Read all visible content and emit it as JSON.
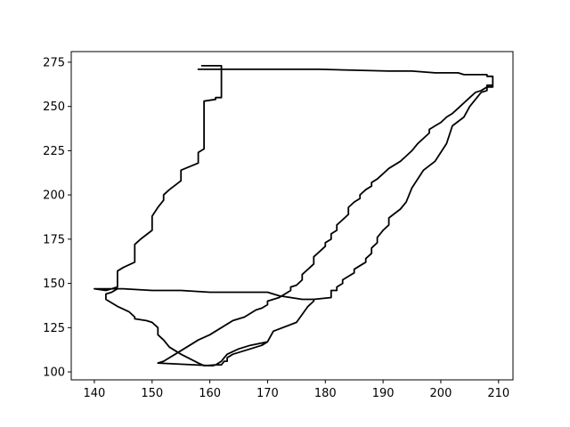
{
  "chart_data": {
    "type": "line",
    "title": "",
    "xlabel": "",
    "ylabel": "",
    "xlim": [
      136,
      212.5
    ],
    "ylim": [
      95.5,
      281
    ],
    "grid": false,
    "legend": "none",
    "x_ticks": [
      140,
      150,
      160,
      170,
      180,
      190,
      200,
      210
    ],
    "y_ticks": [
      100,
      125,
      150,
      175,
      200,
      225,
      250,
      275
    ],
    "series": [
      {
        "color": "#000000",
        "points": [
          [
            158.5,
            273
          ],
          [
            162,
            273
          ],
          [
            162,
            271
          ],
          [
            158,
            271
          ],
          [
            165,
            271
          ],
          [
            179,
            271
          ],
          [
            191,
            270
          ],
          [
            195,
            270
          ],
          [
            199,
            269
          ],
          [
            203,
            269
          ],
          [
            204,
            268
          ],
          [
            208,
            268
          ],
          [
            208,
            267
          ],
          [
            209,
            267
          ],
          [
            209,
            262
          ],
          [
            208,
            262
          ],
          [
            208,
            261
          ],
          [
            207,
            259
          ],
          [
            206,
            258
          ],
          [
            205,
            255
          ],
          [
            204,
            252
          ],
          [
            203,
            249
          ],
          [
            202,
            246
          ],
          [
            201,
            244
          ],
          [
            200,
            241
          ],
          [
            199,
            239
          ],
          [
            198,
            237
          ],
          [
            198,
            235
          ],
          [
            197,
            232
          ],
          [
            196,
            229
          ],
          [
            195,
            225
          ],
          [
            194,
            222
          ],
          [
            193,
            219
          ],
          [
            192,
            217
          ],
          [
            191,
            215
          ],
          [
            190,
            212
          ],
          [
            189,
            209
          ],
          [
            188,
            207
          ],
          [
            188,
            205
          ],
          [
            187,
            203
          ],
          [
            186,
            200
          ],
          [
            186,
            198
          ],
          [
            185,
            196
          ],
          [
            184,
            193
          ],
          [
            184,
            189
          ],
          [
            183,
            186
          ],
          [
            182,
            183
          ],
          [
            182,
            180
          ],
          [
            181,
            178
          ],
          [
            181,
            175
          ],
          [
            180,
            173
          ],
          [
            180,
            171
          ],
          [
            179,
            168
          ],
          [
            178,
            165
          ],
          [
            178,
            161
          ],
          [
            177,
            158
          ],
          [
            176,
            155
          ],
          [
            176,
            152
          ],
          [
            175,
            149
          ],
          [
            174,
            148
          ],
          [
            174,
            146
          ],
          [
            173,
            144
          ],
          [
            172,
            142
          ],
          [
            171,
            141
          ],
          [
            170,
            140
          ],
          [
            170,
            138
          ],
          [
            169,
            136
          ],
          [
            168,
            135
          ],
          [
            167,
            133
          ],
          [
            166,
            131
          ],
          [
            165,
            130
          ],
          [
            164,
            129
          ],
          [
            163,
            127
          ],
          [
            162,
            125
          ],
          [
            161,
            123
          ],
          [
            160,
            121
          ],
          [
            158,
            118
          ],
          [
            157,
            116
          ],
          [
            156,
            114
          ],
          [
            155,
            112
          ],
          [
            154,
            110
          ],
          [
            153,
            108
          ],
          [
            152,
            106
          ],
          [
            151,
            105
          ],
          [
            160.5,
            103.5
          ],
          [
            161,
            104
          ],
          [
            162,
            104
          ],
          [
            162.5,
            106
          ],
          [
            163,
            106
          ],
          [
            163,
            108
          ],
          [
            164,
            110
          ],
          [
            165,
            111
          ],
          [
            167,
            113
          ],
          [
            169,
            115
          ],
          [
            170,
            117
          ],
          [
            171,
            123
          ],
          [
            175,
            128
          ],
          [
            177,
            137
          ],
          [
            178,
            140
          ],
          [
            178,
            141
          ],
          [
            181,
            142
          ],
          [
            181,
            146
          ],
          [
            182,
            146
          ],
          [
            182,
            148
          ],
          [
            183,
            150
          ],
          [
            183,
            152
          ],
          [
            184,
            154
          ],
          [
            185,
            156
          ],
          [
            185,
            158
          ],
          [
            186,
            160
          ],
          [
            187,
            162
          ],
          [
            187,
            164
          ],
          [
            188,
            167
          ],
          [
            188,
            170
          ],
          [
            189,
            173
          ],
          [
            189,
            176
          ],
          [
            190,
            180
          ],
          [
            191,
            183
          ],
          [
            191,
            187
          ],
          [
            193,
            192
          ],
          [
            194,
            196
          ],
          [
            195,
            204
          ],
          [
            197,
            214
          ],
          [
            199,
            219
          ],
          [
            201,
            229
          ],
          [
            202,
            239
          ],
          [
            204,
            244
          ],
          [
            205,
            250
          ],
          [
            206,
            254
          ],
          [
            207,
            258
          ],
          [
            208,
            259
          ],
          [
            208,
            261
          ],
          [
            209,
            261
          ],
          [
            209,
            267
          ],
          [
            208,
            267
          ],
          [
            208,
            268
          ],
          [
            204,
            268
          ],
          [
            203,
            269
          ],
          [
            199,
            269
          ],
          [
            195,
            270
          ],
          [
            191,
            270
          ],
          [
            179,
            271
          ],
          [
            162,
            271
          ],
          [
            162,
            255
          ],
          [
            161,
            255
          ],
          [
            161,
            254
          ],
          [
            159,
            253
          ],
          [
            159,
            250
          ],
          [
            159,
            226
          ],
          [
            158,
            224
          ],
          [
            158,
            221
          ],
          [
            158,
            218
          ],
          [
            155,
            214
          ],
          [
            155,
            208
          ],
          [
            153,
            203
          ],
          [
            152,
            200
          ],
          [
            152,
            197
          ],
          [
            151,
            193
          ],
          [
            150,
            188
          ],
          [
            150,
            180
          ],
          [
            148,
            175
          ],
          [
            147,
            172
          ],
          [
            147,
            167
          ],
          [
            147,
            162
          ],
          [
            145,
            159
          ],
          [
            144,
            157
          ],
          [
            144,
            155
          ],
          [
            144,
            150
          ],
          [
            144,
            148
          ],
          [
            143,
            147
          ],
          [
            142,
            146
          ],
          [
            140,
            147
          ],
          [
            145,
            147
          ],
          [
            150,
            146
          ],
          [
            155,
            146
          ],
          [
            160,
            145
          ],
          [
            165,
            145
          ],
          [
            170,
            145
          ],
          [
            171,
            144
          ],
          [
            172,
            143
          ],
          [
            174,
            142
          ],
          [
            176,
            141
          ],
          [
            178,
            141
          ],
          [
            178,
            140
          ],
          [
            177,
            137
          ],
          [
            175,
            128
          ],
          [
            171,
            123
          ],
          [
            170,
            117
          ],
          [
            167,
            115
          ],
          [
            165,
            113
          ],
          [
            163,
            110
          ],
          [
            162.5,
            108
          ],
          [
            162,
            106
          ],
          [
            161,
            104
          ],
          [
            159,
            103.5
          ],
          [
            158,
            105
          ],
          [
            155,
            110
          ],
          [
            153,
            114
          ],
          [
            152,
            118
          ],
          [
            151,
            121
          ],
          [
            151,
            125
          ],
          [
            150,
            128
          ],
          [
            149,
            129
          ],
          [
            147,
            130
          ],
          [
            147,
            131
          ],
          [
            146,
            134
          ],
          [
            144,
            137
          ],
          [
            143,
            139
          ],
          [
            142,
            141
          ],
          [
            142,
            144
          ],
          [
            143,
            145
          ],
          [
            144,
            147
          ],
          [
            142,
            147
          ],
          [
            140,
            147
          ]
        ]
      }
    ]
  }
}
